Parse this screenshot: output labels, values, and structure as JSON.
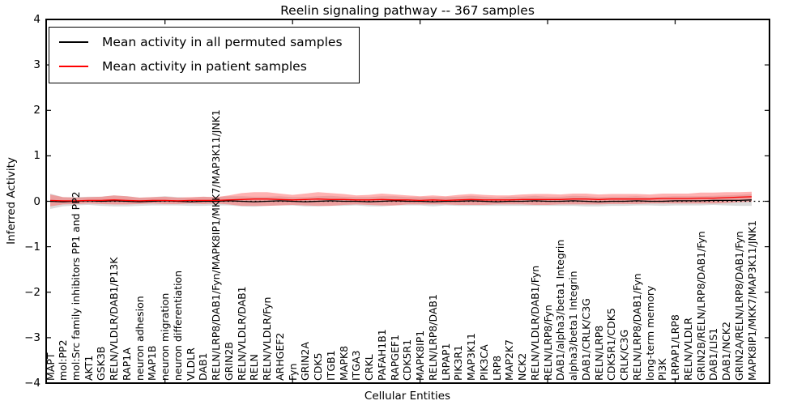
{
  "chart_data": {
    "type": "line",
    "title": "Reelin signaling pathway -- 367 samples",
    "xlabel": "Cellular Entities",
    "ylabel": "Inferred Activity",
    "ylim": [
      -4,
      4
    ],
    "yticks": [
      4,
      3,
      2,
      1,
      0,
      -1,
      -2,
      -3,
      -4
    ],
    "x_major_tick_indices": [
      9,
      19,
      29,
      39,
      49
    ],
    "legend_position": "upper left",
    "grid": false,
    "zero_line": {
      "style": "dotted",
      "color": "#000000",
      "y": 0
    },
    "categories": [
      "MAPT",
      "mol:PP2",
      "mol:Src family inhibitors PP1 and PP2",
      "AKT1",
      "GSK3B",
      "RELN/VLDLR/DAB1/P13K",
      "RAP1A",
      "neuron adhesion",
      "MAP1B",
      "neuron migration",
      "neuron differentiation",
      "VLDLR",
      "DAB1",
      "RELN/LRP8/DAB1/Fyn/MAPK8IP1/MKK7/MAP3K11/JNK1",
      "GRIN2B",
      "RELN/VLDLR/DAB1",
      "RELN",
      "RELN/VLDLR/Fyn",
      "ARHGEF2",
      "Fyn",
      "GRIN2A",
      "CDK5",
      "ITGB1",
      "MAPK8",
      "ITGA3",
      "CRKL",
      "PAFAH1B1",
      "RAPGEF1",
      "CDK5R1",
      "MAPK8IP1",
      "RELN/LRP8/DAB1",
      "LRPAP1",
      "PIK3R1",
      "MAP3K11",
      "PIK3CA",
      "LRP8",
      "MAP2K7",
      "NCK2",
      "RELN/VLDLR/DAB1/Fyn",
      "RELN/LRP8/Fyn",
      "DAB1/alpha3/beta1 Integrin",
      "alpha3/beta1 Integrin",
      "DAB1/CRLK/C3G",
      "RELN/LRP8",
      "CDK5R1/CDK5",
      "CRLK/C3G",
      "RELN/LRP8/DAB1/Fyn",
      "long-term memory",
      "PI3K",
      "LRPAP1/LRP8",
      "RELN/VLDLR",
      "GRIN2B/RELN/LRP8/DAB1/Fyn",
      "DAB1/LIS1",
      "DAB1/NCK2",
      "GRIN2A/RELN/LRP8/DAB1/Fyn",
      "MAPK8IP1/MKK7/MAP3K11/JNK1"
    ],
    "series": [
      {
        "name": "Mean activity in all permuted samples",
        "color": "#000000",
        "band_color": "#b0b0b0",
        "values": [
          0.0,
          -0.01,
          0.0,
          0.01,
          0.0,
          0.01,
          0.0,
          -0.01,
          0.0,
          0.01,
          0.0,
          -0.01,
          0.0,
          0.0,
          0.01,
          0.0,
          -0.01,
          0.0,
          0.01,
          0.0,
          -0.01,
          0.0,
          0.01,
          0.0,
          0.0,
          -0.01,
          0.0,
          0.01,
          0.0,
          0.0,
          -0.01,
          0.0,
          0.0,
          0.01,
          0.0,
          -0.01,
          0.0,
          0.0,
          0.01,
          0.0,
          0.0,
          0.01,
          0.0,
          -0.01,
          0.0,
          0.0,
          0.01,
          0.0,
          0.0,
          0.01,
          0.01,
          0.01,
          0.02,
          0.02,
          0.02,
          0.03
        ],
        "band_halfwidth": [
          0.17,
          0.1,
          0.09,
          0.09,
          0.1,
          0.12,
          0.11,
          0.09,
          0.09,
          0.1,
          0.09,
          0.09,
          0.1,
          0.09,
          0.1,
          0.11,
          0.11,
          0.1,
          0.1,
          0.09,
          0.1,
          0.11,
          0.11,
          0.1,
          0.09,
          0.1,
          0.11,
          0.1,
          0.09,
          0.09,
          0.1,
          0.09,
          0.1,
          0.11,
          0.1,
          0.09,
          0.1,
          0.1,
          0.11,
          0.1,
          0.1,
          0.11,
          0.11,
          0.1,
          0.1,
          0.1,
          0.1,
          0.09,
          0.1,
          0.1,
          0.1,
          0.1,
          0.1,
          0.11,
          0.12,
          0.13
        ]
      },
      {
        "name": "Mean activity in patient samples",
        "color": "#ff0000",
        "band_color": "#ff5555",
        "values": [
          0.02,
          0.01,
          0.01,
          0.02,
          0.02,
          0.03,
          0.02,
          0.01,
          0.02,
          0.02,
          0.01,
          0.02,
          0.02,
          0.02,
          0.03,
          0.04,
          0.05,
          0.05,
          0.04,
          0.03,
          0.04,
          0.05,
          0.04,
          0.04,
          0.03,
          0.03,
          0.04,
          0.03,
          0.03,
          0.02,
          0.03,
          0.02,
          0.03,
          0.04,
          0.03,
          0.03,
          0.03,
          0.04,
          0.04,
          0.04,
          0.04,
          0.05,
          0.05,
          0.04,
          0.05,
          0.05,
          0.05,
          0.05,
          0.06,
          0.06,
          0.06,
          0.07,
          0.07,
          0.08,
          0.09,
          0.1
        ],
        "band_halfwidth": [
          0.13,
          0.08,
          0.07,
          0.07,
          0.08,
          0.1,
          0.09,
          0.07,
          0.07,
          0.08,
          0.07,
          0.07,
          0.08,
          0.07,
          0.1,
          0.14,
          0.15,
          0.15,
          0.13,
          0.11,
          0.13,
          0.15,
          0.14,
          0.12,
          0.1,
          0.11,
          0.13,
          0.12,
          0.1,
          0.09,
          0.1,
          0.09,
          0.11,
          0.12,
          0.11,
          0.1,
          0.1,
          0.11,
          0.12,
          0.12,
          0.11,
          0.12,
          0.12,
          0.11,
          0.11,
          0.11,
          0.11,
          0.1,
          0.11,
          0.11,
          0.11,
          0.12,
          0.12,
          0.12,
          0.11,
          0.11
        ]
      }
    ]
  }
}
